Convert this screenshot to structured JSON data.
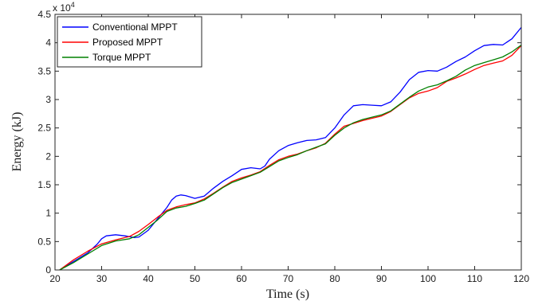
{
  "chart_data": {
    "type": "line",
    "title": "",
    "xlabel": "Time (s)",
    "ylabel": "Energy (kJ)",
    "xlim": [
      20,
      120
    ],
    "ylim": [
      0,
      45000
    ],
    "y_exponent_label": {
      "base": "x 10",
      "exp": "4"
    },
    "xticks": [
      20,
      30,
      40,
      50,
      60,
      70,
      80,
      90,
      100,
      110,
      120
    ],
    "xtick_labels": [
      "20",
      "30",
      "40",
      "50",
      "60",
      "70",
      "80",
      "90",
      "100",
      "110",
      "120"
    ],
    "yticks": [
      0,
      5000,
      10000,
      15000,
      20000,
      25000,
      30000,
      35000,
      40000,
      45000
    ],
    "ytick_labels": [
      "0",
      "0.5",
      "1",
      "1.5",
      "2",
      "2.5",
      "3",
      "3.5",
      "4",
      "4.5"
    ],
    "grid": false,
    "legend_position": "top-left",
    "series": [
      {
        "name": "Conventional MPPT",
        "color": "#0000ff",
        "x": [
          21,
          24,
          27,
          29,
          30,
          31,
          33,
          35,
          37,
          38,
          40,
          42,
          44,
          45,
          46,
          47,
          48,
          50,
          52,
          54,
          56,
          58,
          60,
          62,
          64,
          65,
          66,
          68,
          70,
          72,
          74,
          76,
          78,
          80,
          82,
          84,
          86,
          88,
          90,
          92,
          94,
          96,
          98,
          100,
          102,
          104,
          106,
          108,
          110,
          112,
          114,
          116,
          118,
          120
        ],
        "y": [
          0,
          1500,
          3000,
          4500,
          5500,
          6000,
          6200,
          6000,
          5700,
          5800,
          7000,
          9000,
          11000,
          12300,
          13000,
          13200,
          13100,
          12600,
          13000,
          14400,
          15600,
          16600,
          17700,
          18000,
          17800,
          18300,
          19500,
          21000,
          21900,
          22400,
          22800,
          22900,
          23300,
          25000,
          27300,
          28900,
          29100,
          29000,
          28900,
          29600,
          31300,
          33500,
          34800,
          35100,
          35000,
          35700,
          36700,
          37500,
          38600,
          39500,
          39700,
          39600,
          40700,
          42700
        ]
      },
      {
        "name": "Proposed MPPT",
        "color": "#ff0000",
        "x": [
          21,
          24,
          27,
          30,
          33,
          36,
          38,
          40,
          42,
          44,
          46,
          48,
          50,
          52,
          54,
          56,
          58,
          60,
          62,
          64,
          66,
          68,
          70,
          72,
          74,
          76,
          78,
          80,
          82,
          84,
          86,
          88,
          90,
          92,
          94,
          96,
          98,
          100,
          102,
          104,
          106,
          108,
          110,
          112,
          114,
          116,
          118,
          120
        ],
        "y": [
          0,
          1800,
          3300,
          4600,
          5300,
          5900,
          6800,
          8000,
          9300,
          10500,
          11100,
          11500,
          11800,
          12500,
          13500,
          14600,
          15600,
          16200,
          16700,
          17300,
          18400,
          19400,
          20000,
          20400,
          21000,
          21500,
          22300,
          23900,
          25300,
          25800,
          26300,
          26700,
          27100,
          27900,
          29100,
          30300,
          31100,
          31500,
          32100,
          33200,
          33800,
          34500,
          35300,
          36000,
          36400,
          36800,
          37800,
          39500
        ]
      },
      {
        "name": "Torque MPPT",
        "color": "#008000",
        "x": [
          21,
          24,
          27,
          30,
          33,
          36,
          38,
          40,
          42,
          44,
          46,
          48,
          50,
          52,
          54,
          56,
          58,
          60,
          62,
          64,
          66,
          68,
          70,
          72,
          74,
          76,
          78,
          80,
          82,
          84,
          86,
          88,
          90,
          92,
          94,
          96,
          98,
          100,
          102,
          104,
          106,
          108,
          110,
          112,
          114,
          116,
          118,
          120
        ],
        "y": [
          0,
          1300,
          2800,
          4300,
          5100,
          5500,
          6200,
          7500,
          8800,
          10300,
          10900,
          11200,
          11700,
          12300,
          13400,
          14500,
          15400,
          16000,
          16600,
          17200,
          18200,
          19200,
          19800,
          20300,
          21000,
          21600,
          22200,
          23700,
          25000,
          25900,
          26500,
          26900,
          27300,
          28000,
          29200,
          30400,
          31500,
          32200,
          32600,
          33300,
          34100,
          35200,
          36000,
          36500,
          37000,
          37500,
          38400,
          39600
        ]
      }
    ]
  }
}
